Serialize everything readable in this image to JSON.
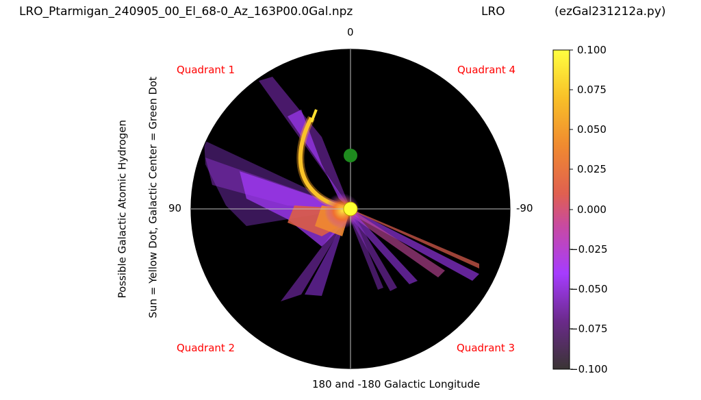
{
  "header": {
    "filename": "LRO_Ptarmigan_240905_00_El_68-0_Az_163P00.0Gal.npz",
    "station": "LRO",
    "script": "(ezGal231212a.py)"
  },
  "polar": {
    "top_label": "0",
    "left_label": "90",
    "right_label": "-90",
    "bottom_label": "180 and -180 Galactic Longitude",
    "quadrants": [
      "Quadrant 1",
      "Quadrant 4",
      "Quadrant 2",
      "Quadrant 3"
    ],
    "ylabel_line1": "Possible Galactic Atomic Hydrogen",
    "ylabel_line2": "Sun = Yellow Dot, Galactic Center = Green Dot"
  },
  "colorbar": {
    "ticks": [
      "0.100",
      "0.075",
      "0.050",
      "0.025",
      "0.000",
      "−0.025",
      "−0.050",
      "−0.075",
      "−0.100"
    ],
    "min": -0.1,
    "max": 0.1,
    "colormap": [
      "#3a3434",
      "#7a2aa0",
      "#a63cff",
      "#d24a8c",
      "#e87040",
      "#f5a020",
      "#ffe030",
      "#ffff40"
    ]
  },
  "chart_data": {
    "type": "heatmap",
    "projection": "polar",
    "axis": "Galactic Longitude",
    "markers": [
      {
        "name": "Sun",
        "color": "#ffff33"
      },
      {
        "name": "Galactic Center",
        "color": "#1e8a1e"
      }
    ],
    "value_range": [
      -0.1,
      0.1
    ]
  },
  "colors": {
    "background": "#000000",
    "crosshair": "#bfbfbf",
    "quadrant_text": "#ff0000"
  }
}
